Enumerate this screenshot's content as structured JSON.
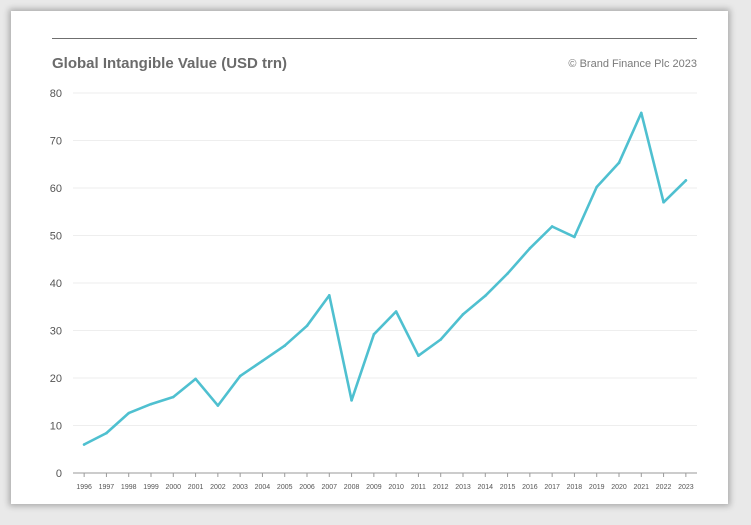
{
  "title": "Global Intangible Value (USD trn)",
  "credit": "© Brand Finance Plc 2023",
  "colors": {
    "line": "#4fc0d0",
    "grid": "#eeeeee",
    "axis": "#9a9a9a",
    "tick_text": "#555555",
    "title": "#6b6b6b"
  },
  "chart_data": {
    "type": "line",
    "title": "Global Intangible Value (USD trn)",
    "xlabel": "",
    "ylabel": "",
    "ylim": [
      0,
      80
    ],
    "yticks": [
      0,
      10,
      20,
      30,
      40,
      50,
      60,
      70,
      80
    ],
    "grid": "horizontal",
    "categories": [
      "1996",
      "1997",
      "1998",
      "1999",
      "2000",
      "2001",
      "2002",
      "2003",
      "2004",
      "2005",
      "2006",
      "2007",
      "2008",
      "2009",
      "2010",
      "2011",
      "2012",
      "2013",
      "2014",
      "2015",
      "2016",
      "2017",
      "2018",
      "2019",
      "2020",
      "2021",
      "2022",
      "2023"
    ],
    "series": [
      {
        "values": [
          6,
          8.4,
          12.6,
          14.5,
          16,
          19.8,
          14.2,
          20.4,
          23.6,
          26.8,
          31,
          37.4,
          15.3,
          29.2,
          34,
          24.7,
          28.1,
          33.4,
          37.3,
          42,
          47.3,
          51.9,
          49.7,
          60.2,
          65.3,
          75.8,
          57,
          61.6
        ]
      }
    ]
  }
}
